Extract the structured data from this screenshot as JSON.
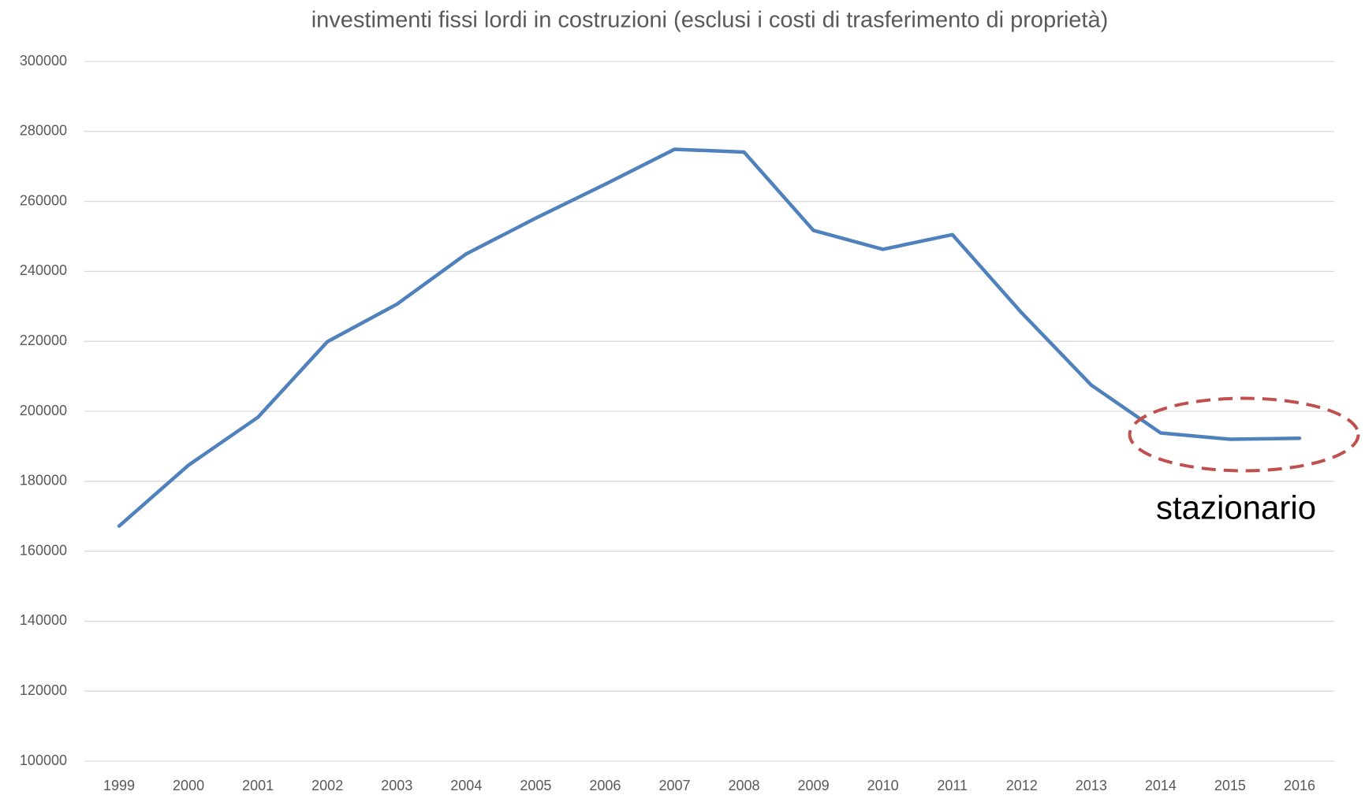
{
  "chart_data": {
    "type": "line",
    "title": "investimenti fissi lordi in costruzioni (esclusi i costi di trasferimento di proprietà)",
    "categories": [
      "1999",
      "2000",
      "2001",
      "2002",
      "2003",
      "2004",
      "2005",
      "2006",
      "2007",
      "2008",
      "2009",
      "2010",
      "2011",
      "2012",
      "2013",
      "2014",
      "2015",
      "2016"
    ],
    "series": [
      {
        "name": "investimenti fissi lordi in costruzioni",
        "color": "#4f81bd",
        "values": [
          167200,
          184600,
          198300,
          219900,
          230600,
          245000,
          255200,
          264900,
          274900,
          274100,
          251700,
          246300,
          250500,
          228100,
          207500,
          193800,
          192000,
          192300
        ]
      }
    ],
    "ylim": [
      100000,
      300000
    ],
    "yticks": [
      100000,
      120000,
      140000,
      160000,
      180000,
      200000,
      220000,
      240000,
      260000,
      280000,
      300000
    ],
    "grid": true,
    "annotation": "stazionario"
  }
}
